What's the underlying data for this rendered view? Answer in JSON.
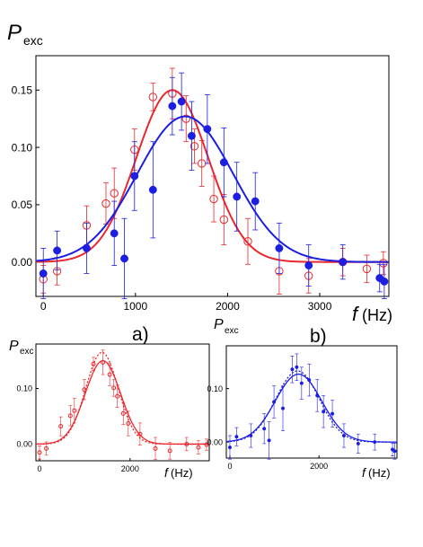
{
  "chart_data": [
    {
      "type": "scatter",
      "title": "",
      "panel_label": "",
      "ylabel_main": "P",
      "ylabel_sub": "exc",
      "xlabel_italic": "f",
      "xlabel_unit": "(Hz)",
      "xlim": [
        -80,
        3750
      ],
      "ylim": [
        -0.03,
        0.18
      ],
      "xticks": [
        0,
        1000,
        2000,
        3000
      ],
      "xticklabels": [
        "0",
        "1000",
        "2000",
        "3000"
      ],
      "yticks": [
        0.0,
        0.05,
        0.1,
        0.15
      ],
      "yticklabels": [
        "0.00",
        "0.05",
        "0.10",
        "0.15"
      ],
      "grid": false,
      "series": [
        {
          "color": "#e8282e",
          "marker": "open-circle",
          "points": [
            {
              "x": 0,
              "y": -0.015,
              "err": 0.012
            },
            {
              "x": 150,
              "y": -0.008,
              "err": 0.012
            },
            {
              "x": 470,
              "y": 0.032,
              "err": 0.017
            },
            {
              "x": 680,
              "y": 0.051,
              "err": 0.018
            },
            {
              "x": 770,
              "y": 0.06,
              "err": 0.022
            },
            {
              "x": 990,
              "y": 0.098,
              "err": 0.018
            },
            {
              "x": 1190,
              "y": 0.144,
              "err": 0.012
            },
            {
              "x": 1400,
              "y": 0.147,
              "err": 0.022
            },
            {
              "x": 1550,
              "y": 0.125,
              "err": 0.02
            },
            {
              "x": 1640,
              "y": 0.101,
              "err": 0.015
            },
            {
              "x": 1720,
              "y": 0.086,
              "err": 0.02
            },
            {
              "x": 1850,
              "y": 0.055,
              "err": 0.02
            },
            {
              "x": 1960,
              "y": 0.037,
              "err": 0.022
            },
            {
              "x": 2220,
              "y": 0.018,
              "err": 0.02
            },
            {
              "x": 2560,
              "y": -0.008,
              "err": 0.02
            },
            {
              "x": 2880,
              "y": -0.012,
              "err": 0.015
            },
            {
              "x": 3250,
              "y": 0.0,
              "err": 0.012
            },
            {
              "x": 3510,
              "y": -0.006,
              "err": 0.012
            },
            {
              "x": 3690,
              "y": -0.001,
              "err": 0.01
            }
          ],
          "fit": {
            "amplitude": 0.15,
            "center": 1400,
            "sigma": 390,
            "style": "solid"
          }
        },
        {
          "color": "#1c1ee0",
          "marker": "filled-circle",
          "points": [
            {
              "x": 0,
              "y": -0.01,
              "err": 0.022
            },
            {
              "x": 150,
              "y": 0.01,
              "err": 0.017
            },
            {
              "x": 470,
              "y": 0.012,
              "err": 0.022
            },
            {
              "x": 770,
              "y": 0.025,
              "err": 0.028
            },
            {
              "x": 880,
              "y": 0.003,
              "err": 0.035
            },
            {
              "x": 990,
              "y": 0.075,
              "err": 0.03
            },
            {
              "x": 1190,
              "y": 0.063,
              "err": 0.042
            },
            {
              "x": 1400,
              "y": 0.136,
              "err": 0.025
            },
            {
              "x": 1500,
              "y": 0.14,
              "err": 0.025
            },
            {
              "x": 1610,
              "y": 0.11,
              "err": 0.03
            },
            {
              "x": 1780,
              "y": 0.116,
              "err": 0.03
            },
            {
              "x": 1960,
              "y": 0.087,
              "err": 0.03
            },
            {
              "x": 2100,
              "y": 0.057,
              "err": 0.03
            },
            {
              "x": 2300,
              "y": 0.053,
              "err": 0.025
            },
            {
              "x": 2560,
              "y": 0.012,
              "err": 0.022
            },
            {
              "x": 2880,
              "y": -0.003,
              "err": 0.018
            },
            {
              "x": 3250,
              "y": 0.0,
              "err": 0.015
            },
            {
              "x": 3650,
              "y": -0.014,
              "err": 0.012
            },
            {
              "x": 3700,
              "y": -0.017,
              "err": 0.015
            }
          ],
          "fit": {
            "amplitude": 0.127,
            "center": 1540,
            "sigma": 520,
            "style": "solid"
          }
        }
      ]
    },
    {
      "type": "scatter",
      "title": "",
      "panel_label": "a)",
      "ylabel_main": "P",
      "ylabel_sub": "exc",
      "xlabel_italic": "f",
      "xlabel_unit": "(Hz)",
      "xlim": [
        -80,
        3750
      ],
      "ylim": [
        -0.03,
        0.18
      ],
      "xticks": [
        0,
        2000
      ],
      "xticklabels": [
        "0",
        "2000"
      ],
      "yticks": [
        0.0,
        0.1
      ],
      "yticklabels": [
        "0.00",
        "0.10"
      ],
      "grid": false,
      "series": [
        {
          "color": "#e8282e",
          "marker": "small-open-circle",
          "points": [
            {
              "x": 0,
              "y": -0.015,
              "err": 0.012
            },
            {
              "x": 150,
              "y": -0.008,
              "err": 0.012
            },
            {
              "x": 470,
              "y": 0.032,
              "err": 0.017
            },
            {
              "x": 680,
              "y": 0.051,
              "err": 0.018
            },
            {
              "x": 770,
              "y": 0.06,
              "err": 0.022
            },
            {
              "x": 990,
              "y": 0.098,
              "err": 0.018
            },
            {
              "x": 1190,
              "y": 0.144,
              "err": 0.012
            },
            {
              "x": 1400,
              "y": 0.147,
              "err": 0.022
            },
            {
              "x": 1550,
              "y": 0.125,
              "err": 0.02
            },
            {
              "x": 1640,
              "y": 0.101,
              "err": 0.015
            },
            {
              "x": 1720,
              "y": 0.086,
              "err": 0.02
            },
            {
              "x": 1850,
              "y": 0.055,
              "err": 0.02
            },
            {
              "x": 1960,
              "y": 0.037,
              "err": 0.022
            },
            {
              "x": 2220,
              "y": 0.018,
              "err": 0.02
            },
            {
              "x": 2560,
              "y": -0.008,
              "err": 0.02
            },
            {
              "x": 2880,
              "y": -0.012,
              "err": 0.015
            },
            {
              "x": 3250,
              "y": 0.0,
              "err": 0.012
            },
            {
              "x": 3510,
              "y": -0.006,
              "err": 0.012
            },
            {
              "x": 3690,
              "y": -0.001,
              "err": 0.01
            }
          ],
          "fit": {
            "amplitude": 0.15,
            "center": 1400,
            "sigma": 390,
            "style": "solid"
          },
          "fit_alt": {
            "amplitude": 0.165,
            "center": 1380,
            "sigma": 360,
            "style": "dotted"
          }
        }
      ]
    },
    {
      "type": "scatter",
      "title": "",
      "panel_label": "b)",
      "ylabel_main": "P",
      "ylabel_sub": "exc",
      "xlabel_italic": "f",
      "xlabel_unit": "(Hz)",
      "xlim": [
        -80,
        3750
      ],
      "ylim": [
        -0.03,
        0.18
      ],
      "xticks": [
        0,
        2000
      ],
      "xticklabels": [
        "0",
        "2000"
      ],
      "yticks": [
        0.0,
        0.1
      ],
      "yticklabels": [
        "0.00",
        "0.10"
      ],
      "grid": false,
      "series": [
        {
          "color": "#1c1ee0",
          "marker": "small-filled-circle",
          "points": [
            {
              "x": 0,
              "y": -0.01,
              "err": 0.022
            },
            {
              "x": 150,
              "y": 0.01,
              "err": 0.017
            },
            {
              "x": 470,
              "y": 0.012,
              "err": 0.022
            },
            {
              "x": 770,
              "y": 0.025,
              "err": 0.028
            },
            {
              "x": 880,
              "y": 0.003,
              "err": 0.035
            },
            {
              "x": 990,
              "y": 0.075,
              "err": 0.03
            },
            {
              "x": 1190,
              "y": 0.063,
              "err": 0.042
            },
            {
              "x": 1400,
              "y": 0.136,
              "err": 0.025
            },
            {
              "x": 1500,
              "y": 0.14,
              "err": 0.025
            },
            {
              "x": 1610,
              "y": 0.11,
              "err": 0.03
            },
            {
              "x": 1780,
              "y": 0.116,
              "err": 0.03
            },
            {
              "x": 1960,
              "y": 0.087,
              "err": 0.03
            },
            {
              "x": 2100,
              "y": 0.057,
              "err": 0.03
            },
            {
              "x": 2300,
              "y": 0.053,
              "err": 0.025
            },
            {
              "x": 2560,
              "y": 0.012,
              "err": 0.022
            },
            {
              "x": 2880,
              "y": -0.003,
              "err": 0.018
            },
            {
              "x": 3250,
              "y": 0.0,
              "err": 0.015
            },
            {
              "x": 3650,
              "y": -0.014,
              "err": 0.012
            },
            {
              "x": 3700,
              "y": -0.017,
              "err": 0.015
            }
          ],
          "fit": {
            "amplitude": 0.127,
            "center": 1540,
            "sigma": 520,
            "style": "solid"
          },
          "fit_alt": {
            "amplitude": 0.133,
            "center": 1520,
            "sigma": 490,
            "style": "dotted"
          }
        }
      ]
    }
  ]
}
